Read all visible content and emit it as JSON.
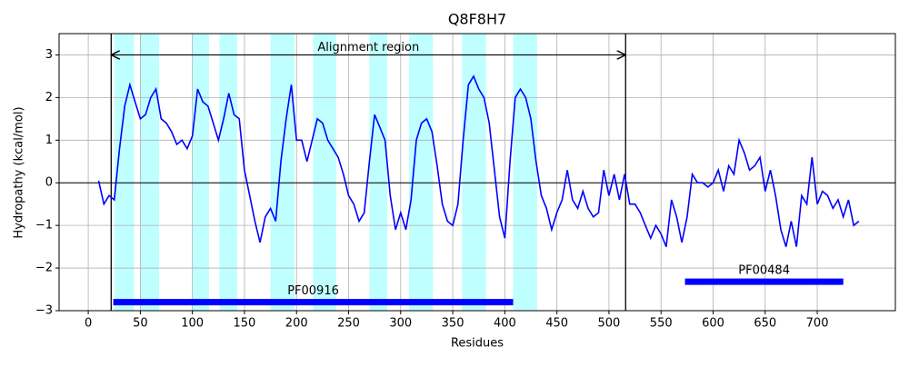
{
  "chart_data": {
    "type": "line",
    "title": "Q8F8H7",
    "x_label": "Residues",
    "y_label": "Hydropathy (kcal/mol)",
    "x": [
      10,
      15,
      20,
      25,
      30,
      35,
      40,
      45,
      50,
      55,
      60,
      65,
      70,
      75,
      80,
      85,
      90,
      95,
      100,
      105,
      110,
      115,
      120,
      125,
      130,
      135,
      140,
      145,
      150,
      155,
      160,
      165,
      170,
      175,
      180,
      185,
      190,
      195,
      200,
      205,
      210,
      215,
      220,
      225,
      230,
      235,
      240,
      245,
      250,
      255,
      260,
      265,
      270,
      275,
      280,
      285,
      290,
      295,
      300,
      305,
      310,
      315,
      320,
      325,
      330,
      335,
      340,
      345,
      350,
      355,
      360,
      365,
      370,
      375,
      380,
      385,
      390,
      395,
      400,
      405,
      410,
      415,
      420,
      425,
      430,
      435,
      440,
      445,
      450,
      455,
      460,
      465,
      470,
      475,
      480,
      485,
      490,
      495,
      500,
      505,
      510,
      515,
      520,
      525,
      530,
      535,
      540,
      545,
      550,
      555,
      560,
      565,
      570,
      575,
      580,
      585,
      590,
      595,
      600,
      605,
      610,
      615,
      620,
      625,
      630,
      635,
      640,
      645,
      650,
      655,
      660,
      665,
      670,
      675,
      680,
      685,
      690,
      695,
      700,
      705,
      710,
      715,
      720,
      725,
      730,
      735,
      740
    ],
    "series": [
      {
        "color": "#0000ff",
        "values": [
          0.05,
          -0.5,
          -0.3,
          -0.4,
          0.8,
          1.8,
          2.3,
          1.9,
          1.5,
          1.6,
          2.0,
          2.2,
          1.5,
          1.4,
          1.2,
          0.9,
          1.0,
          0.8,
          1.1,
          2.2,
          1.9,
          1.8,
          1.4,
          1.0,
          1.5,
          2.1,
          1.6,
          1.5,
          0.3,
          -0.3,
          -0.9,
          -1.4,
          -0.8,
          -0.6,
          -0.9,
          0.5,
          1.5,
          2.3,
          1.0,
          1.0,
          0.5,
          1.0,
          1.5,
          1.4,
          1.0,
          0.8,
          0.6,
          0.2,
          -0.3,
          -0.5,
          -0.9,
          -0.7,
          0.5,
          1.6,
          1.3,
          1.0,
          -0.3,
          -1.1,
          -0.7,
          -1.1,
          -0.4,
          1.0,
          1.4,
          1.5,
          1.2,
          0.4,
          -0.5,
          -0.9,
          -1.0,
          -0.5,
          1.0,
          2.3,
          2.5,
          2.2,
          2.0,
          1.4,
          0.3,
          -0.8,
          -1.3,
          0.5,
          2.0,
          2.2,
          2.0,
          1.5,
          0.5,
          -0.3,
          -0.6,
          -1.1,
          -0.7,
          -0.4,
          0.3,
          -0.4,
          -0.6,
          -0.2,
          -0.6,
          -0.8,
          -0.7,
          0.3,
          -0.3,
          0.2,
          -0.4,
          0.2,
          -0.5,
          -0.5,
          -0.7,
          -1.0,
          -1.3,
          -1.0,
          -1.2,
          -1.5,
          -0.4,
          -0.8,
          -1.4,
          -0.8,
          0.2,
          0.0,
          0.0,
          -0.1,
          0.0,
          0.3,
          -0.2,
          0.4,
          0.2,
          1.0,
          0.7,
          0.3,
          0.4,
          0.6,
          -0.2,
          0.3,
          -0.3,
          -1.1,
          -1.5,
          -0.9,
          -1.5,
          -0.3,
          -0.5,
          0.6,
          -0.5,
          -0.2,
          -0.3,
          -0.6,
          -0.4,
          -0.8,
          -0.4,
          -1.0,
          -0.9
        ]
      }
    ],
    "xlim": [
      -28,
      775
    ],
    "ylim": [
      -3,
      3.5
    ],
    "xticks": [
      0,
      50,
      100,
      150,
      200,
      250,
      300,
      350,
      400,
      450,
      500,
      550,
      600,
      650,
      700
    ],
    "yticks": [
      {
        "value": -3,
        "label": "−3"
      },
      {
        "value": -2,
        "label": "−2"
      },
      {
        "value": -1,
        "label": "−1"
      },
      0,
      1,
      2,
      3
    ],
    "grid": true,
    "hline": 0,
    "vlines": [
      22,
      516
    ],
    "span_color": "#bfffff",
    "spans": [
      [
        25,
        44
      ],
      [
        50,
        68
      ],
      [
        100,
        116
      ],
      [
        126,
        143
      ],
      [
        175,
        198
      ],
      [
        216,
        238
      ],
      [
        270,
        287
      ],
      [
        308,
        331
      ],
      [
        359,
        382
      ],
      [
        408,
        431
      ]
    ],
    "region": {
      "text": "Alignment region",
      "x": [
        22,
        516
      ],
      "y": 3
    },
    "domains": [
      {
        "name": "PF00916",
        "start": 24,
        "end": 408,
        "y": -2.8
      },
      {
        "name": "PF00484",
        "start": 573,
        "end": 725,
        "y": -2.32
      }
    ],
    "domain_color": "#0000ff"
  }
}
